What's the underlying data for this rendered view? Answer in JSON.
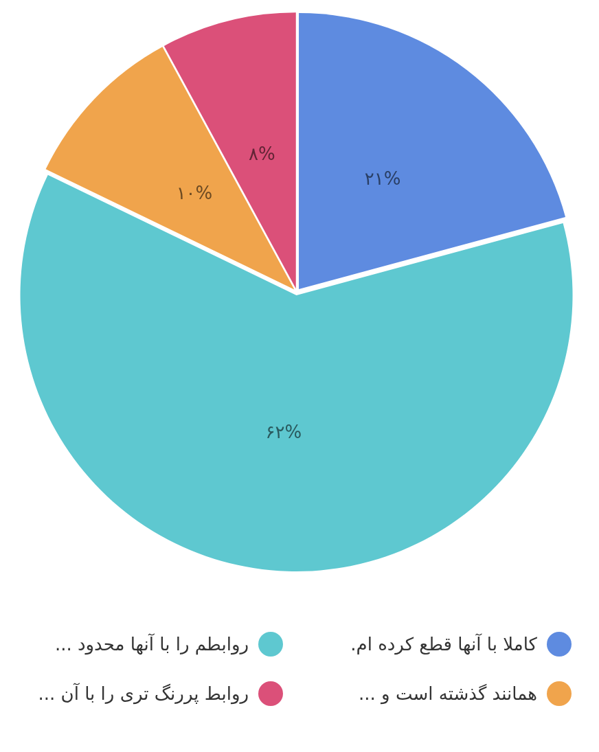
{
  "chart_data": {
    "type": "pie",
    "categories": [
      "کاملا با آنها قطع کرده ام.",
      "روابطم را با آنها محدود ...",
      "همانند گذشته است و ...",
      "روابط پررنگ تری را با آن ..."
    ],
    "values": [
      21,
      62,
      10,
      8
    ],
    "colors": [
      "#5e8be0",
      "#5ec8d0",
      "#f0a44c",
      "#db5079"
    ],
    "value_labels": [
      "۲۱%",
      "۶۲%",
      "۱۰%",
      "۸%"
    ],
    "legend": "bottom"
  }
}
